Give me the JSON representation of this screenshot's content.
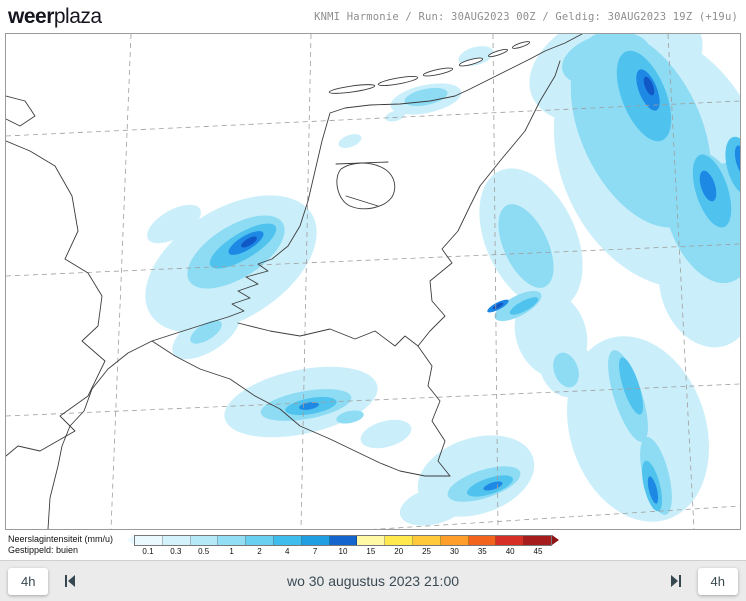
{
  "header": {
    "logo_weer": "weer",
    "logo_plaza": "plaza",
    "model_info": "KNMI Harmonie / Run: 30AUG2023 00Z / Geldig: 30AUG2023 19Z (+19u)"
  },
  "map": {
    "precip_levels": [
      "#CBEFFA",
      "#8EDCF4",
      "#4FC3EE",
      "#1E88E5",
      "#1158C7"
    ]
  },
  "legend": {
    "title": "Neerslagintensiteit (mm/u)",
    "subtitle": "Gestippeld: buien",
    "values": [
      "0.1",
      "0.3",
      "0.5",
      "1",
      "2",
      "4",
      "7",
      "10",
      "15",
      "20",
      "25",
      "30",
      "35",
      "40",
      "45"
    ],
    "colors": [
      "#EAF9FD",
      "#D3F2FB",
      "#B5E9F8",
      "#92DEF5",
      "#69D0F1",
      "#3FBDEC",
      "#219FE3",
      "#1465CE",
      "#FFF9A6",
      "#FFE94F",
      "#FFC93B",
      "#FF9E2A",
      "#F4631E",
      "#D62F26",
      "#A61B1B"
    ]
  },
  "controls": {
    "back_step_label": "4h",
    "forward_step_label": "4h",
    "datetime_label": "wo 30 augustus 2023 21:00",
    "icons": {
      "skip_back": "skip-to-start",
      "skip_forward": "skip-to-end"
    }
  }
}
